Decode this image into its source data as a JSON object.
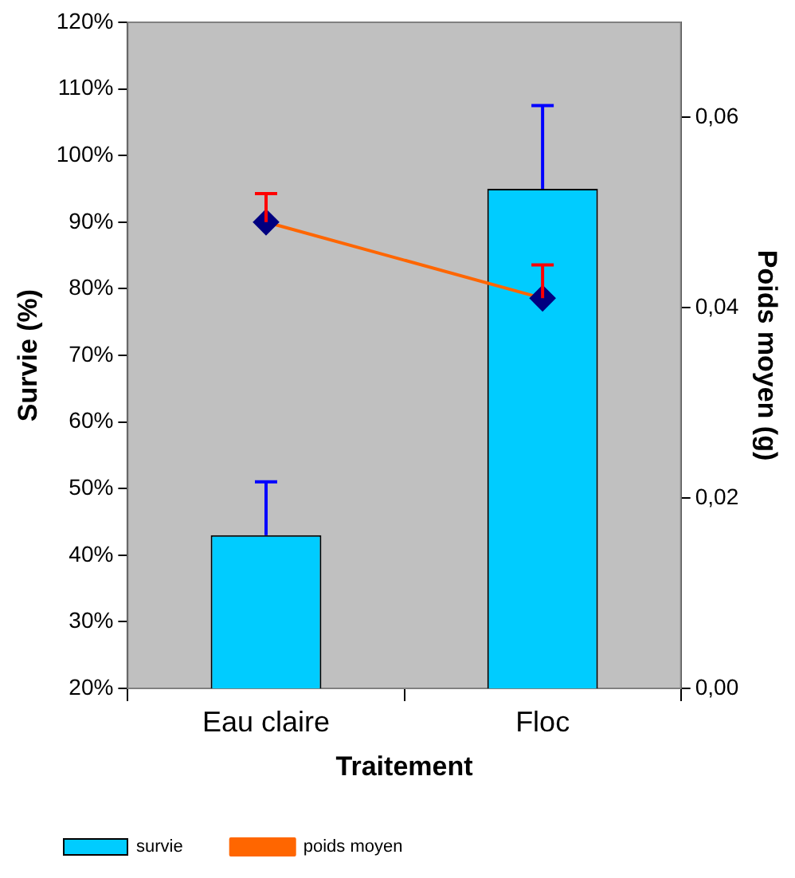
{
  "chart_data": {
    "type": "bar",
    "xlabel": "Traitement",
    "ylabel": "Survie (%)",
    "y2label": "Poids moyen (g)",
    "categories": [
      "Eau claire",
      "Floc"
    ],
    "series": [
      {
        "name": "survie",
        "color": "#00ccff",
        "values": [
          43,
          95
        ],
        "errors": [
          [
            43,
            51
          ],
          [
            95,
            107.5
          ]
        ]
      },
      {
        "name": "poids moyen",
        "type": "line",
        "axis": "y2",
        "color": "#ff6600",
        "marker": "diamond",
        "values": [
          0.049,
          0.041
        ],
        "errors": [
          [
            0.049,
            0.052
          ],
          [
            0.041,
            0.0445
          ]
        ]
      }
    ],
    "ylim": [
      20,
      120
    ],
    "yticks": [
      {
        "value": 20,
        "label": "20%"
      },
      {
        "value": 30,
        "label": "30%"
      },
      {
        "value": 40,
        "label": "40%"
      },
      {
        "value": 50,
        "label": "50%"
      },
      {
        "value": 60,
        "label": "60%"
      },
      {
        "value": 70,
        "label": "70%"
      },
      {
        "value": 80,
        "label": "80%"
      },
      {
        "value": 90,
        "label": "90%"
      },
      {
        "value": 100,
        "label": "100%"
      },
      {
        "value": 110,
        "label": "110%"
      },
      {
        "value": 120,
        "label": "120%"
      }
    ],
    "y2lim": [
      0,
      0.07
    ],
    "y2ticks": [
      {
        "value": 0,
        "label": "0,00"
      },
      {
        "value": 0.02,
        "label": "0,02"
      },
      {
        "value": 0.04,
        "label": "0,04"
      },
      {
        "value": 0.06,
        "label": "0,06"
      }
    ],
    "legend": "bottom left"
  }
}
